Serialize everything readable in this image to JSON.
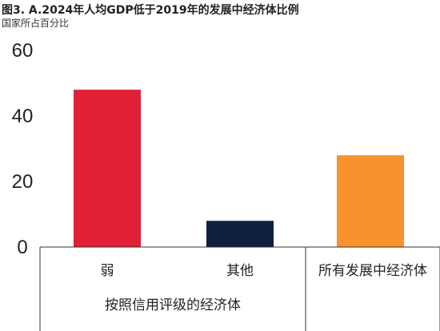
{
  "chart_data": {
    "type": "bar",
    "title": "图3. A.2024年人均GDP低于2019年的发展中经济体比例",
    "subtitle": "国家所占百分比",
    "categories": [
      "弱",
      "其他",
      "所有发展中经济体"
    ],
    "group_label": "按照信用评级的经济体",
    "values": [
      48,
      8,
      28
    ],
    "colors": [
      "#e11f35",
      "#0e2240",
      "#f7922d"
    ],
    "yticks": [
      0,
      20,
      40,
      60
    ],
    "ylim": [
      0,
      60
    ],
    "grid": false,
    "legend": "none"
  }
}
